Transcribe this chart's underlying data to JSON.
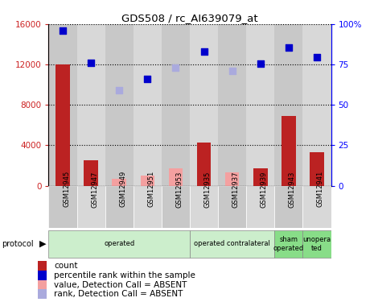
{
  "title": "GDS508 / rc_AI639079_at",
  "samples": [
    "GSM12945",
    "GSM12947",
    "GSM12949",
    "GSM12951",
    "GSM12953",
    "GSM12935",
    "GSM12937",
    "GSM12939",
    "GSM12943",
    "GSM12941"
  ],
  "count_present": [
    12000,
    2500,
    0,
    0,
    0,
    4300,
    0,
    1700,
    6900,
    3300
  ],
  "count_absent": [
    0,
    0,
    700,
    1000,
    1700,
    0,
    1300,
    0,
    0,
    0
  ],
  "rank_present": [
    15400,
    12200,
    0,
    10600,
    0,
    13300,
    0,
    12100,
    13700,
    12700
  ],
  "rank_absent": [
    0,
    0,
    9500,
    0,
    11700,
    0,
    11400,
    0,
    0,
    0
  ],
  "ylim_left": [
    0,
    16000
  ],
  "yticks_left": [
    0,
    4000,
    8000,
    12000,
    16000
  ],
  "ytick_labels_left": [
    "0",
    "4000",
    "8000",
    "12000",
    "16000"
  ],
  "yticks_right": [
    0,
    25,
    50,
    75,
    100
  ],
  "ytick_labels_right": [
    "0",
    "25",
    "50",
    "75",
    "100%"
  ],
  "groups": [
    {
      "label": "operated",
      "start": 0,
      "end": 5,
      "color": "#cceecc"
    },
    {
      "label": "operated contralateral",
      "start": 5,
      "end": 8,
      "color": "#cceecc"
    },
    {
      "label": "sham\noperated",
      "start": 8,
      "end": 9,
      "color": "#88dd88"
    },
    {
      "label": "unopera\nted",
      "start": 9,
      "end": 10,
      "color": "#88dd88"
    }
  ],
  "color_count_present": "#bb2222",
  "color_count_absent": "#f4a0a0",
  "color_rank_present": "#0000cc",
  "color_rank_absent": "#aaaadd",
  "legend_items": [
    {
      "label": "count",
      "color": "#bb2222"
    },
    {
      "label": "percentile rank within the sample",
      "color": "#0000cc"
    },
    {
      "label": "value, Detection Call = ABSENT",
      "color": "#f4a0a0"
    },
    {
      "label": "rank, Detection Call = ABSENT",
      "color": "#aaaadd"
    }
  ],
  "col_colors": [
    "#c8c8c8",
    "#d8d8d8",
    "#c8c8c8",
    "#d8d8d8",
    "#c8c8c8",
    "#d8d8d8",
    "#c8c8c8",
    "#d8d8d8",
    "#c8c8c8",
    "#d8d8d8"
  ]
}
